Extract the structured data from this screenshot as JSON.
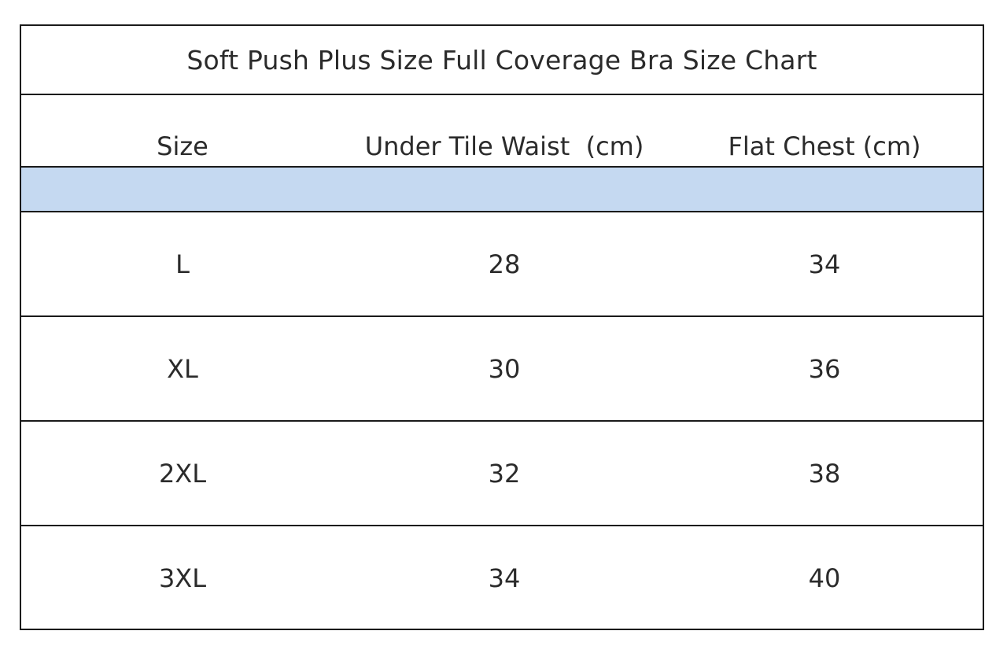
{
  "title": "Soft Push Plus Size Full Coverage Bra Size Chart",
  "headers": [
    "Size",
    "Under Tile Waist  (cm)",
    "Flat Chest (cm)"
  ],
  "rows": [
    [
      "L",
      "28",
      "34"
    ],
    [
      "XL",
      "30",
      "36"
    ],
    [
      "2XL",
      "32",
      "38"
    ],
    [
      "3XL",
      "34",
      "40"
    ]
  ],
  "colors": {
    "band": "#c5d9f1",
    "border": "#1a1a1a",
    "text": "#2b2b2b"
  }
}
